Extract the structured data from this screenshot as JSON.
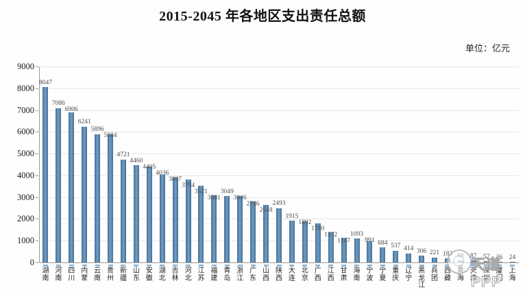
{
  "header": {
    "title": "2015-2045 年各地区支出责任总额",
    "unit_label": "单位：亿元"
  },
  "watermark": {
    "text": "天道PPP",
    "logo": "tiandao-circle-logo"
  },
  "chart_data": {
    "type": "bar",
    "title": "2015-2045 年各地区支出责任总额",
    "unit": "亿元",
    "categories": [
      "湖南",
      "河南",
      "四川",
      "内蒙",
      "云南",
      "贵州",
      "新疆",
      "山东",
      "安徽",
      "湖北",
      "吉林",
      "河北",
      "江苏",
      "福建",
      "青岛",
      "浙江",
      "广东",
      "山西",
      "陕西",
      "大连",
      "北京",
      "广西",
      "江西",
      "甘肃",
      "海南",
      "宁波",
      "宁夏",
      "重庆",
      "辽宁",
      "黑龙江",
      "兵团",
      "西藏",
      "青海",
      "天津",
      "深圳",
      "厦门",
      "上海"
    ],
    "values": [
      8047,
      7086,
      6906,
      6241,
      5896,
      5884,
      4721,
      4460,
      4405,
      4036,
      3897,
      3794,
      3521,
      3081,
      3049,
      3046,
      2786,
      2648,
      2493,
      1915,
      1892,
      1780,
      1372,
      1147,
      1093,
      991,
      684,
      537,
      414,
      306,
      221,
      183,
      88,
      87,
      57,
      26,
      24
    ],
    "xlabel": "",
    "ylabel": "",
    "ylim": [
      0,
      9000
    ],
    "ytick_step": 1000,
    "yticks": [
      "0",
      "1000",
      "2000",
      "3000",
      "4000",
      "5000",
      "6000",
      "7000",
      "8000",
      "9000"
    ],
    "grid": true,
    "legend": "none",
    "bar_color": "#4a7aa3",
    "value_labels_shown": true
  }
}
